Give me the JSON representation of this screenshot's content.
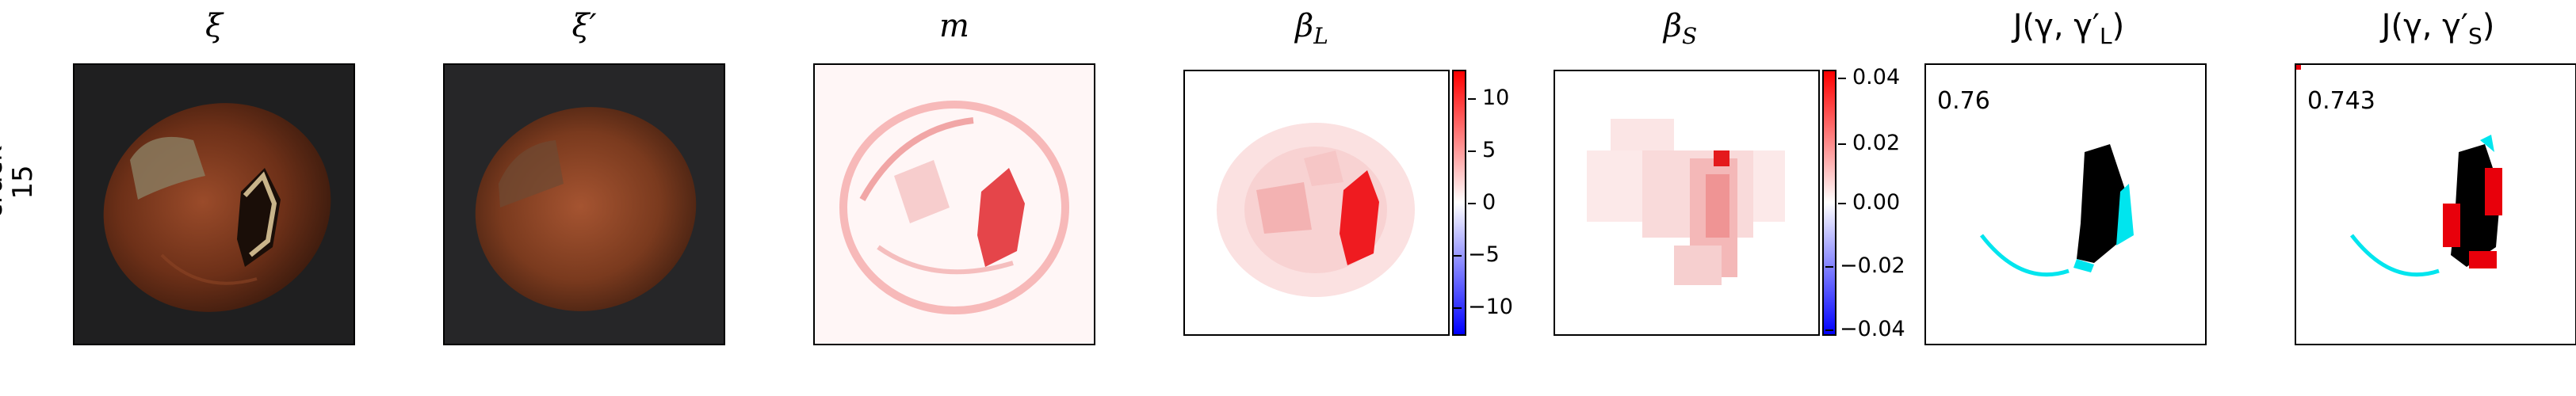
{
  "row_label": [
    "crack",
    "15"
  ],
  "panels": [
    {
      "id": "xi",
      "title": "ξ"
    },
    {
      "id": "xi_prime",
      "title": "ξ′"
    },
    {
      "id": "m",
      "title": "m"
    },
    {
      "id": "beta_L",
      "title": "β_L",
      "title_main": "β",
      "title_sub": "L"
    },
    {
      "id": "beta_S",
      "title": "β_S",
      "title_main": "β",
      "title_sub": "S"
    },
    {
      "id": "J_L",
      "title": "J(γ, γ′_L)",
      "title_main": "J(γ, γ′",
      "title_sub": "L",
      "title_end": ")",
      "score": "0.76"
    },
    {
      "id": "J_S",
      "title": "J(γ, γ′_S)",
      "title_main": "J(γ, γ′",
      "title_sub": "S",
      "title_end": ")",
      "score": "0.743"
    }
  ],
  "colorbar_L": {
    "ticks": [
      "10",
      "5",
      "0",
      "−5",
      "−10"
    ],
    "colors": {
      "high": "#ff0000",
      "mid": "#ffffff",
      "low": "#0000ff"
    }
  },
  "colorbar_S": {
    "ticks": [
      "0.04",
      "0.02",
      "0.00",
      "−0.02",
      "−0.04"
    ],
    "colors": {
      "high": "#ff0000",
      "mid": "#ffffff",
      "low": "#0000ff"
    }
  },
  "colors": {
    "overlay_cyan": "#00e5ee",
    "overlay_red": "#e8000b",
    "overlay_black": "#000000"
  }
}
